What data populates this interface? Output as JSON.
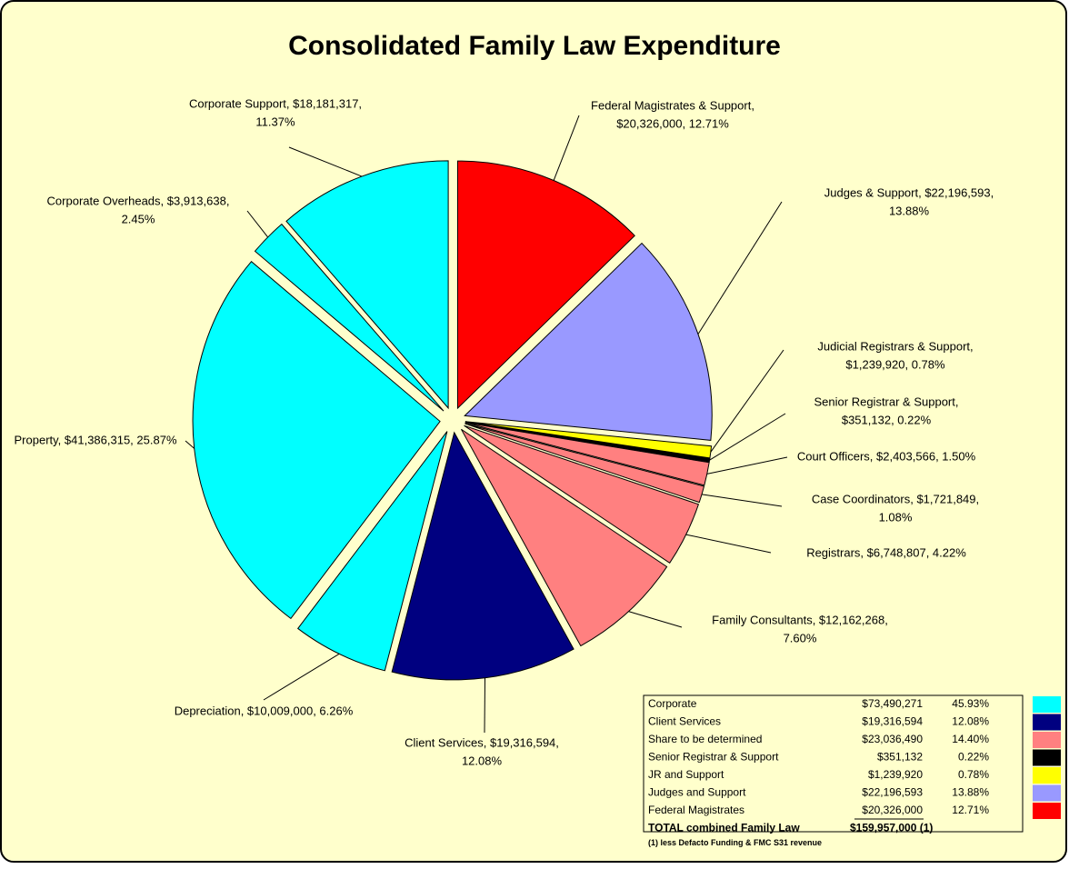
{
  "chart_data": {
    "type": "pie",
    "title": "Consolidated Family Law Expenditure",
    "values": [
      20326000,
      22196593,
      1239920,
      351132,
      2403566,
      1721849,
      6748807,
      12162268,
      19316594,
      10009000,
      41386315,
      3913638,
      18181317
    ],
    "value_labels": [
      [
        "Federal Magistrates & Support,",
        "$20,326,000, 12.71%"
      ],
      [
        "Judges & Support, $22,196,593,",
        "13.88%"
      ],
      [
        "Judicial Registrars & Support,",
        "$1,239,920, 0.78%"
      ],
      [
        "Senior Registrar & Support,",
        "$351,132, 0.22%"
      ],
      [
        "Court Officers, $2,403,566, 1.50%"
      ],
      [
        "Case Coordinators, $1,721,849,",
        "1.08%"
      ],
      [
        "Registrars, $6,748,807, 4.22%"
      ],
      [
        "Family Consultants, $12,162,268,",
        "7.60%"
      ],
      [
        "Client Services, $19,316,594,",
        "12.08%"
      ],
      [
        "Depreciation, $10,009,000, 6.26%"
      ],
      [
        "Property, $41,386,315, 25.87%"
      ],
      [
        "Corporate Overheads, $3,913,638,",
        "2.45%"
      ],
      [
        "Corporate Support, $18,181,317,",
        "11.37%"
      ]
    ],
    "colors": [
      "#ff0000",
      "#9999ff",
      "#ffff00",
      "#000000",
      "#ff8080",
      "#ff8080",
      "#ff8080",
      "#ff8080",
      "#000080",
      "#00ffff",
      "#00ffff",
      "#00ffff",
      "#00ffff"
    ]
  },
  "table": {
    "rows": [
      [
        "Corporate",
        "$73,490,271",
        "45.93%"
      ],
      [
        "Client Services",
        "$19,316,594",
        "12.08%"
      ],
      [
        "Share to be determined",
        "$23,036,490",
        "14.40%"
      ],
      [
        "Senior Registrar & Support",
        "$351,132",
        "0.22%"
      ],
      [
        "JR and Support",
        "$1,239,920",
        "0.78%"
      ],
      [
        "Judges and Support",
        "$22,196,593",
        "13.88%"
      ],
      [
        "Federal Magistrates",
        "$20,326,000",
        "12.71%"
      ]
    ],
    "colors": [
      "#00ffff",
      "#000080",
      "#ff8080",
      "#000000",
      "#ffff00",
      "#9999ff",
      "#ff0000"
    ],
    "total": [
      "TOTAL combined Family Law",
      "$159,957,000 (1)"
    ],
    "footnote": "(1) less Defacto Funding & FMC S31 revenue"
  }
}
